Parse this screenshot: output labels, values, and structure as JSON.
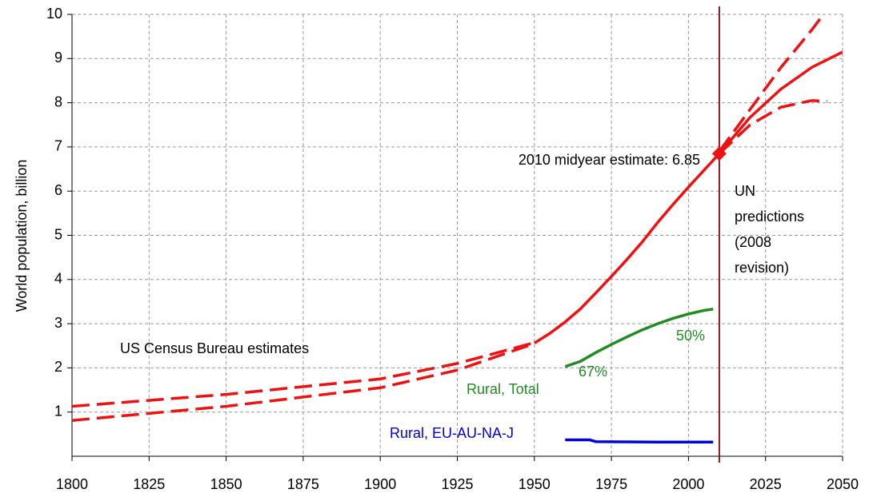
{
  "chart_data": {
    "type": "line",
    "ylabel": "World population, billion",
    "xlim": [
      1800,
      2050
    ],
    "xticks": [
      1800,
      1825,
      1850,
      1875,
      1900,
      1925,
      1950,
      1975,
      2000,
      2025,
      2050
    ],
    "ylim": [
      0,
      10
    ],
    "yticks": [
      1,
      2,
      3,
      4,
      5,
      6,
      7,
      8,
      9,
      10
    ],
    "grid": true,
    "series": [
      {
        "color": "#ee1111",
        "dash": true,
        "x": [
          1800,
          1850,
          1900,
          1925,
          1950
        ],
        "values": [
          1.13,
          1.4,
          1.75,
          2.1,
          2.57
        ]
      },
      {
        "color": "#ee1111",
        "dash": true,
        "x": [
          1800,
          1850,
          1900,
          1925,
          1950
        ],
        "values": [
          0.81,
          1.13,
          1.55,
          1.95,
          2.55
        ]
      },
      {
        "color": "#ee1111",
        "dash": false,
        "x": [
          1950,
          1955,
          1960,
          1965,
          1970,
          1975,
          1980,
          1985,
          1990,
          1995,
          2000,
          2005,
          2010
        ],
        "values": [
          2.56,
          2.78,
          3.04,
          3.34,
          3.7,
          4.07,
          4.45,
          4.85,
          5.29,
          5.7,
          6.09,
          6.47,
          6.85
        ]
      },
      {
        "color": "#ee1111",
        "dash": false,
        "x": [
          2010,
          2020,
          2030,
          2040,
          2050
        ],
        "values": [
          6.85,
          7.67,
          8.31,
          8.8,
          9.15
        ]
      },
      {
        "color": "#ee1111",
        "dash": true,
        "x": [
          2010,
          2020,
          2030,
          2040,
          2046
        ],
        "values": [
          6.9,
          7.85,
          8.8,
          9.65,
          10.2
        ]
      },
      {
        "color": "#ee1111",
        "dash": true,
        "x": [
          2010,
          2020,
          2030,
          2040,
          2045
        ],
        "values": [
          6.85,
          7.5,
          7.9,
          8.05,
          8.03
        ]
      },
      {
        "name": "Rural, Total",
        "color": "#228b22",
        "dash": false,
        "x": [
          1960,
          1965,
          1970,
          1975,
          1980,
          1985,
          1990,
          1995,
          2000,
          2005,
          2008
        ],
        "values": [
          2.03,
          2.15,
          2.35,
          2.53,
          2.7,
          2.86,
          3.0,
          3.12,
          3.22,
          3.3,
          3.33
        ]
      },
      {
        "name": "Rural, EU-AU-NA-J",
        "color": "#0000e0",
        "dash": false,
        "x": [
          1960,
          1968,
          1970,
          1990,
          2008
        ],
        "values": [
          0.37,
          0.37,
          0.33,
          0.32,
          0.32
        ]
      }
    ],
    "marker": {
      "x": 2010,
      "value": 6.85,
      "color": "#ee1111"
    },
    "vline": {
      "x": 2010,
      "color": "#8b1a1a"
    },
    "annotations": [
      "2010 midyear estimate: 6.85",
      "US Census Bureau estimates",
      "67%",
      "50%"
    ],
    "un_note": [
      "UN",
      "predictions",
      "(2008",
      "revision)"
    ]
  }
}
